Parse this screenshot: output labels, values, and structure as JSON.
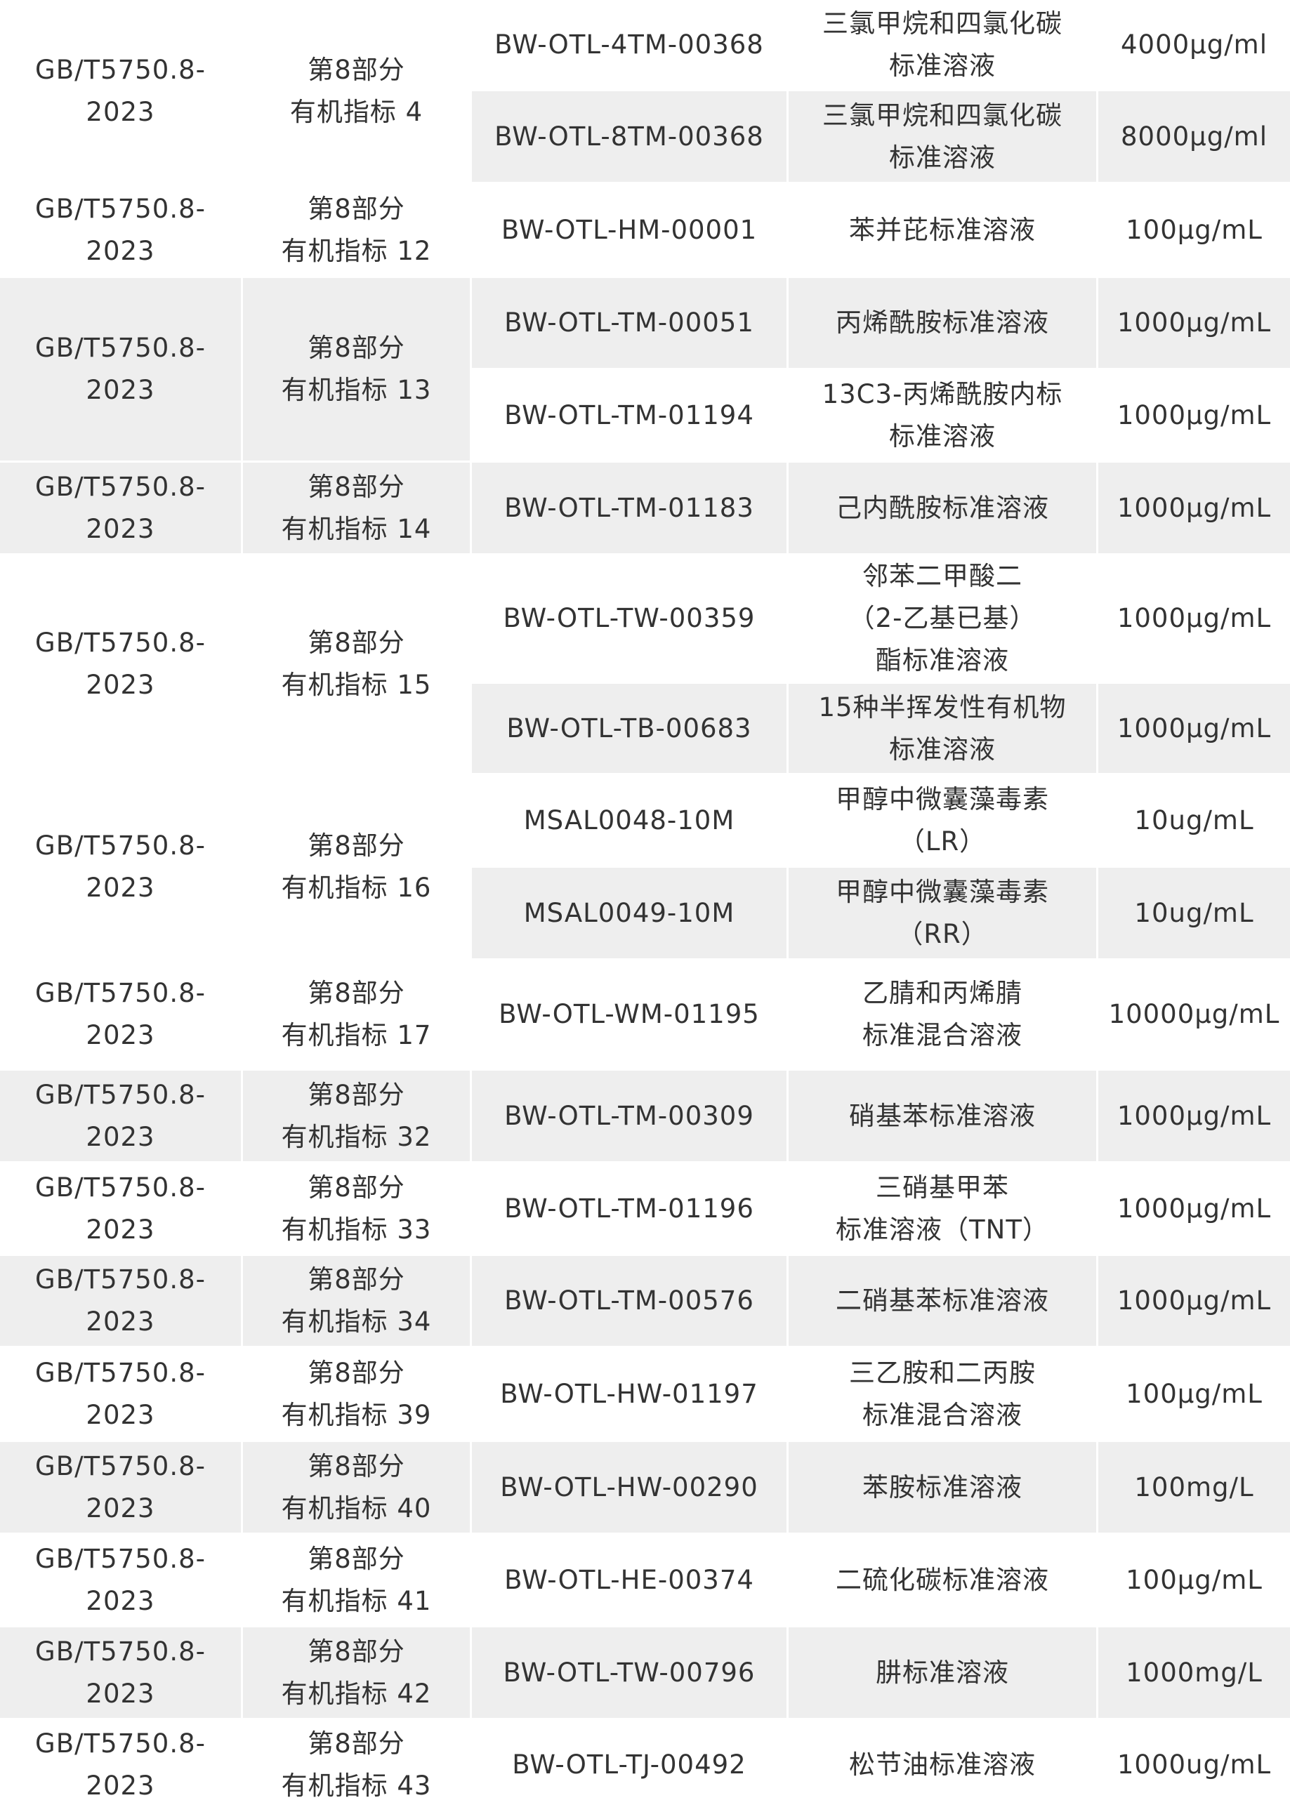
{
  "table": {
    "colors": {
      "shaded": "#eeeeee",
      "text": "#333333"
    },
    "groups": [
      {
        "standard": "GB/T5750.8-\n2023",
        "part": "第8部分\n有机指标  4",
        "shaded": false,
        "items": [
          {
            "code": "BW-OTL-4TM-00368",
            "name": "三氯甲烷和四氯化碳\n标准溶液",
            "conc": "4000μg/ml",
            "shaded": false
          },
          {
            "code": "BW-OTL-8TM-00368",
            "name": "三氯甲烷和四氯化碳\n标准溶液",
            "conc": "8000μg/ml",
            "shaded": true
          }
        ]
      },
      {
        "standard": "GB/T5750.8-\n2023",
        "part": "第8部分\n有机指标 12",
        "shaded": false,
        "items": [
          {
            "code": "BW-OTL-HM-00001",
            "name": "苯并芘标准溶液",
            "conc": "100μg/mL",
            "shaded": false
          }
        ]
      },
      {
        "standard": "GB/T5750.8-\n2023",
        "part": "第8部分\n有机指标 13",
        "shaded": true,
        "items": [
          {
            "code": "BW-OTL-TM-00051",
            "name": "丙烯酰胺标准溶液",
            "conc": "1000μg/mL",
            "shaded": true
          },
          {
            "code": "BW-OTL-TM-01194",
            "name": "13C3-丙烯酰胺内标\n标准溶液",
            "conc": "1000μg/mL",
            "shaded": false
          }
        ]
      },
      {
        "standard": "GB/T5750.8-\n2023",
        "part": "第8部分\n有机指标 14",
        "shaded": true,
        "items": [
          {
            "code": "BW-OTL-TM-01183",
            "name": "己内酰胺标准溶液",
            "conc": "1000μg/mL",
            "shaded": true
          }
        ]
      },
      {
        "standard": "GB/T5750.8-\n2023",
        "part": "第8部分\n有机指标 15",
        "shaded": false,
        "items": [
          {
            "code": "BW-OTL-TW-00359",
            "name": "邻苯二甲酸二\n（2-乙基已基）\n酯标准溶液",
            "conc": "1000μg/mL",
            "shaded": false
          },
          {
            "code": "BW-OTL-TB-00683",
            "name": "15种半挥发性有机物\n标准溶液",
            "conc": "1000μg/mL",
            "shaded": true
          }
        ]
      },
      {
        "standard": "GB/T5750.8-\n2023",
        "part": "第8部分\n有机指标 16",
        "shaded": false,
        "items": [
          {
            "code": "MSAL0048-10M",
            "name": "甲醇中微囊藻毒素\n（LR）",
            "conc": "10ug/mL",
            "shaded": false
          },
          {
            "code": "MSAL0049-10M",
            "name": "甲醇中微囊藻毒素\n（RR）",
            "conc": "10ug/mL",
            "shaded": true
          }
        ]
      },
      {
        "standard": "GB/T5750.8-\n2023",
        "part": "第8部分\n有机指标 17",
        "shaded": false,
        "items": [
          {
            "code": "BW-OTL-WM-01195",
            "name": "乙腈和丙烯腈\n标准混合溶液",
            "conc": "10000μg/mL",
            "shaded": false
          }
        ]
      },
      {
        "standard": "GB/T5750.8-\n2023",
        "part": "第8部分\n有机指标 32",
        "shaded": true,
        "items": [
          {
            "code": "BW-OTL-TM-00309",
            "name": "硝基苯标准溶液",
            "conc": "1000μg/mL",
            "shaded": true
          }
        ]
      },
      {
        "standard": "GB/T5750.8-\n2023",
        "part": "第8部分\n有机指标 33",
        "shaded": false,
        "items": [
          {
            "code": "BW-OTL-TM-01196",
            "name": "三硝基甲苯\n标准溶液（TNT）",
            "conc": "1000μg/mL",
            "shaded": false
          }
        ]
      },
      {
        "standard": "GB/T5750.8-\n2023",
        "part": "第8部分\n有机指标 34",
        "shaded": true,
        "items": [
          {
            "code": "BW-OTL-TM-00576",
            "name": "二硝基苯标准溶液",
            "conc": "1000μg/mL",
            "shaded": true
          }
        ]
      },
      {
        "standard": "GB/T5750.8-\n2023",
        "part": "第8部分\n有机指标 39",
        "shaded": false,
        "items": [
          {
            "code": "BW-OTL-HW-01197",
            "name": "三乙胺和二丙胺\n标准混合溶液",
            "conc": "100μg/mL",
            "shaded": false
          }
        ]
      },
      {
        "standard": "GB/T5750.8-\n2023",
        "part": "第8部分\n有机指标 40",
        "shaded": true,
        "items": [
          {
            "code": "BW-OTL-HW-00290",
            "name": "苯胺标准溶液",
            "conc": "100mg/L",
            "shaded": true
          }
        ]
      },
      {
        "standard": "GB/T5750.8-\n2023",
        "part": "第8部分\n有机指标 41",
        "shaded": false,
        "items": [
          {
            "code": "BW-OTL-HE-00374",
            "name": "二硫化碳标准溶液",
            "conc": "100μg/mL",
            "shaded": false
          }
        ]
      },
      {
        "standard": "GB/T5750.8-\n2023",
        "part": "第8部分\n有机指标 42",
        "shaded": true,
        "items": [
          {
            "code": "BW-OTL-TW-00796",
            "name": "肼标准溶液",
            "conc": "1000mg/L",
            "shaded": true
          }
        ]
      },
      {
        "standard": "GB/T5750.8-\n2023",
        "part": "第8部分\n有机指标 43",
        "shaded": false,
        "items": [
          {
            "code": "BW-OTL-TJ-00492",
            "name": "松节油标准溶液",
            "conc": "1000ug/mL",
            "shaded": false
          }
        ]
      }
    ]
  }
}
